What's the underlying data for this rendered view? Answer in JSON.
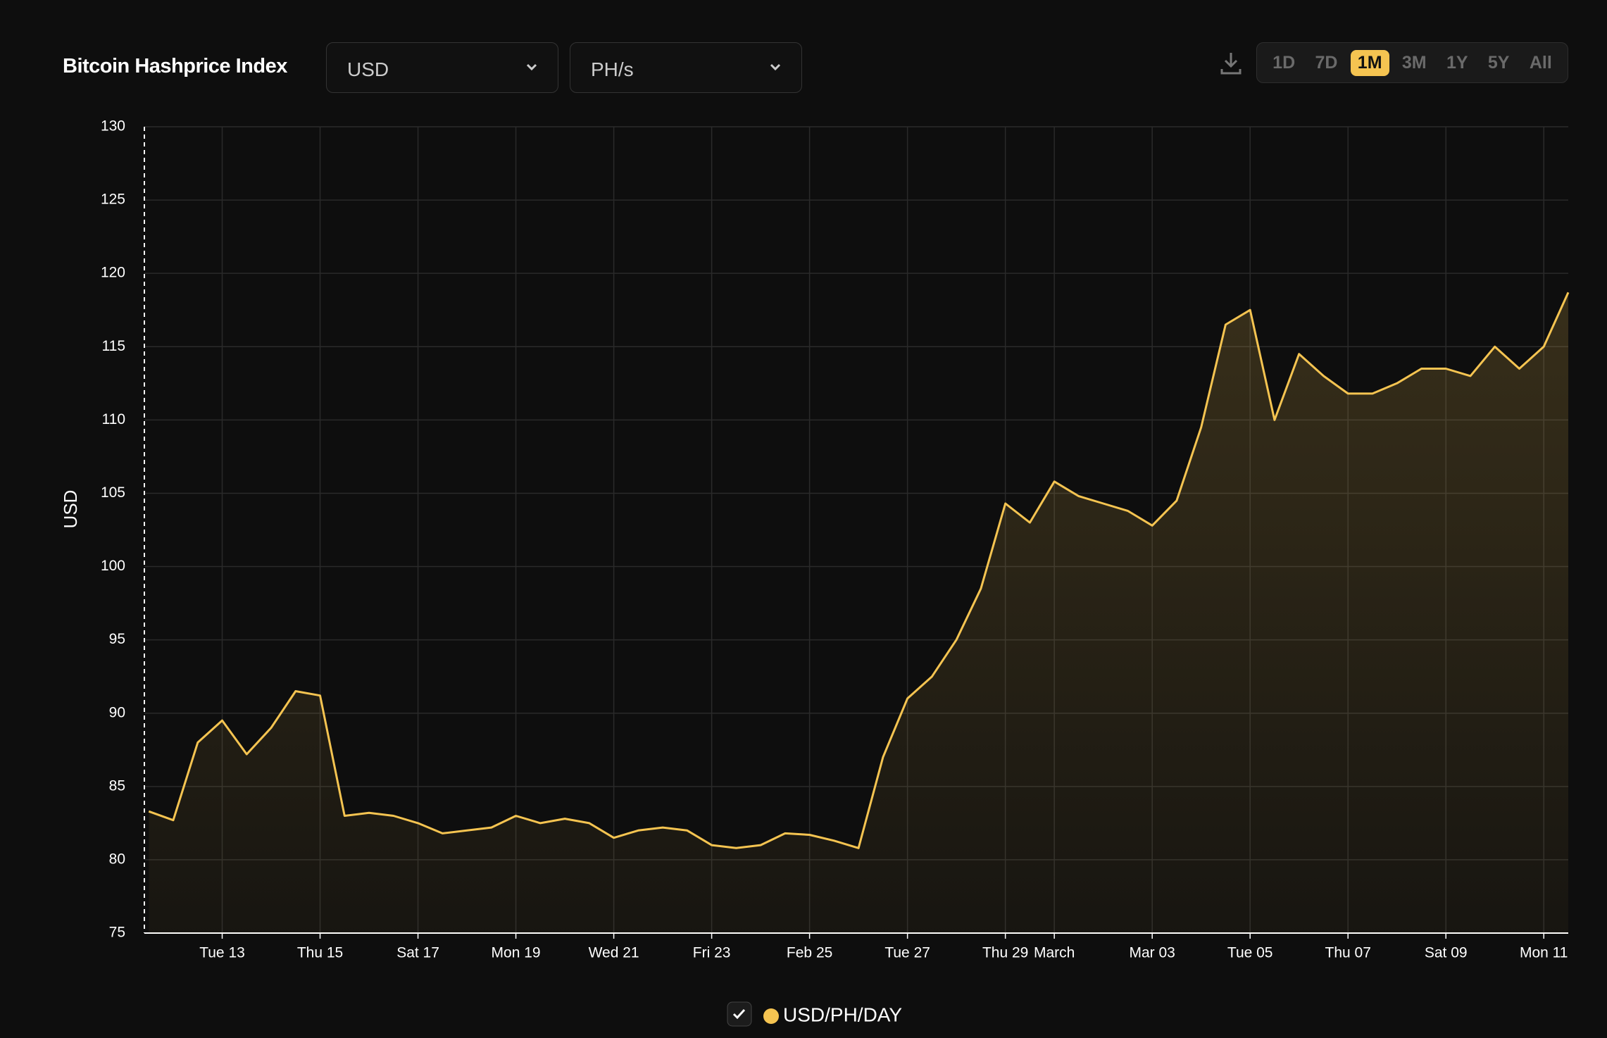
{
  "controls": {
    "title": "Bitcoin Hashprice Index",
    "currency": "USD",
    "unit": "PH/s",
    "ranges": [
      "1D",
      "7D",
      "1M",
      "3M",
      "1Y",
      "5Y",
      "All"
    ],
    "selected": "1M"
  },
  "chart_data": {
    "type": "line",
    "y_label": "USD",
    "categories": [
      null,
      null,
      null,
      "Tue 13",
      null,
      null,
      null,
      "Thu 15",
      null,
      null,
      null,
      "Sat 17",
      null,
      null,
      null,
      "Mon 19",
      null,
      null,
      null,
      "Wed 21",
      null,
      null,
      null,
      "Fri 23",
      null,
      null,
      null,
      "Feb 25",
      null,
      null,
      null,
      "Tue 27",
      null,
      null,
      null,
      "Thu 29",
      null,
      "March",
      null,
      null,
      null,
      "Mar 03",
      null,
      null,
      null,
      "Tue 05",
      null,
      null,
      null,
      "Thu 07",
      null,
      null,
      null,
      "Sat 09",
      null,
      null,
      null,
      "Mon 11",
      null
    ],
    "series": [
      {
        "name": "USD/PH/DAY",
        "color": "#f5c451",
        "values": [
          83.3,
          82.7,
          88,
          89.5,
          87.2,
          89,
          91.5,
          91.2,
          83,
          83.2,
          83,
          82.5,
          81.8,
          82,
          82.2,
          83,
          82.5,
          82.8,
          82.5,
          81.5,
          82,
          82.2,
          82,
          81,
          80.8,
          81,
          81.8,
          81.7,
          81.3,
          80.8,
          87,
          91,
          92.5,
          95,
          98.5,
          104.3,
          103,
          105.8,
          104.8,
          104.3,
          103.8,
          102.8,
          104.5,
          109.5,
          116.5,
          117.5,
          110,
          114.5,
          113,
          111.8,
          111.8,
          112.5,
          113.5,
          113.5,
          113,
          115,
          113.5,
          115,
          118.7
        ]
      }
    ],
    "ylim": [
      75,
      130
    ],
    "yticks": [
      75,
      80,
      85,
      90,
      95,
      100,
      105,
      110,
      115,
      120,
      125,
      130
    ],
    "grid": true
  }
}
